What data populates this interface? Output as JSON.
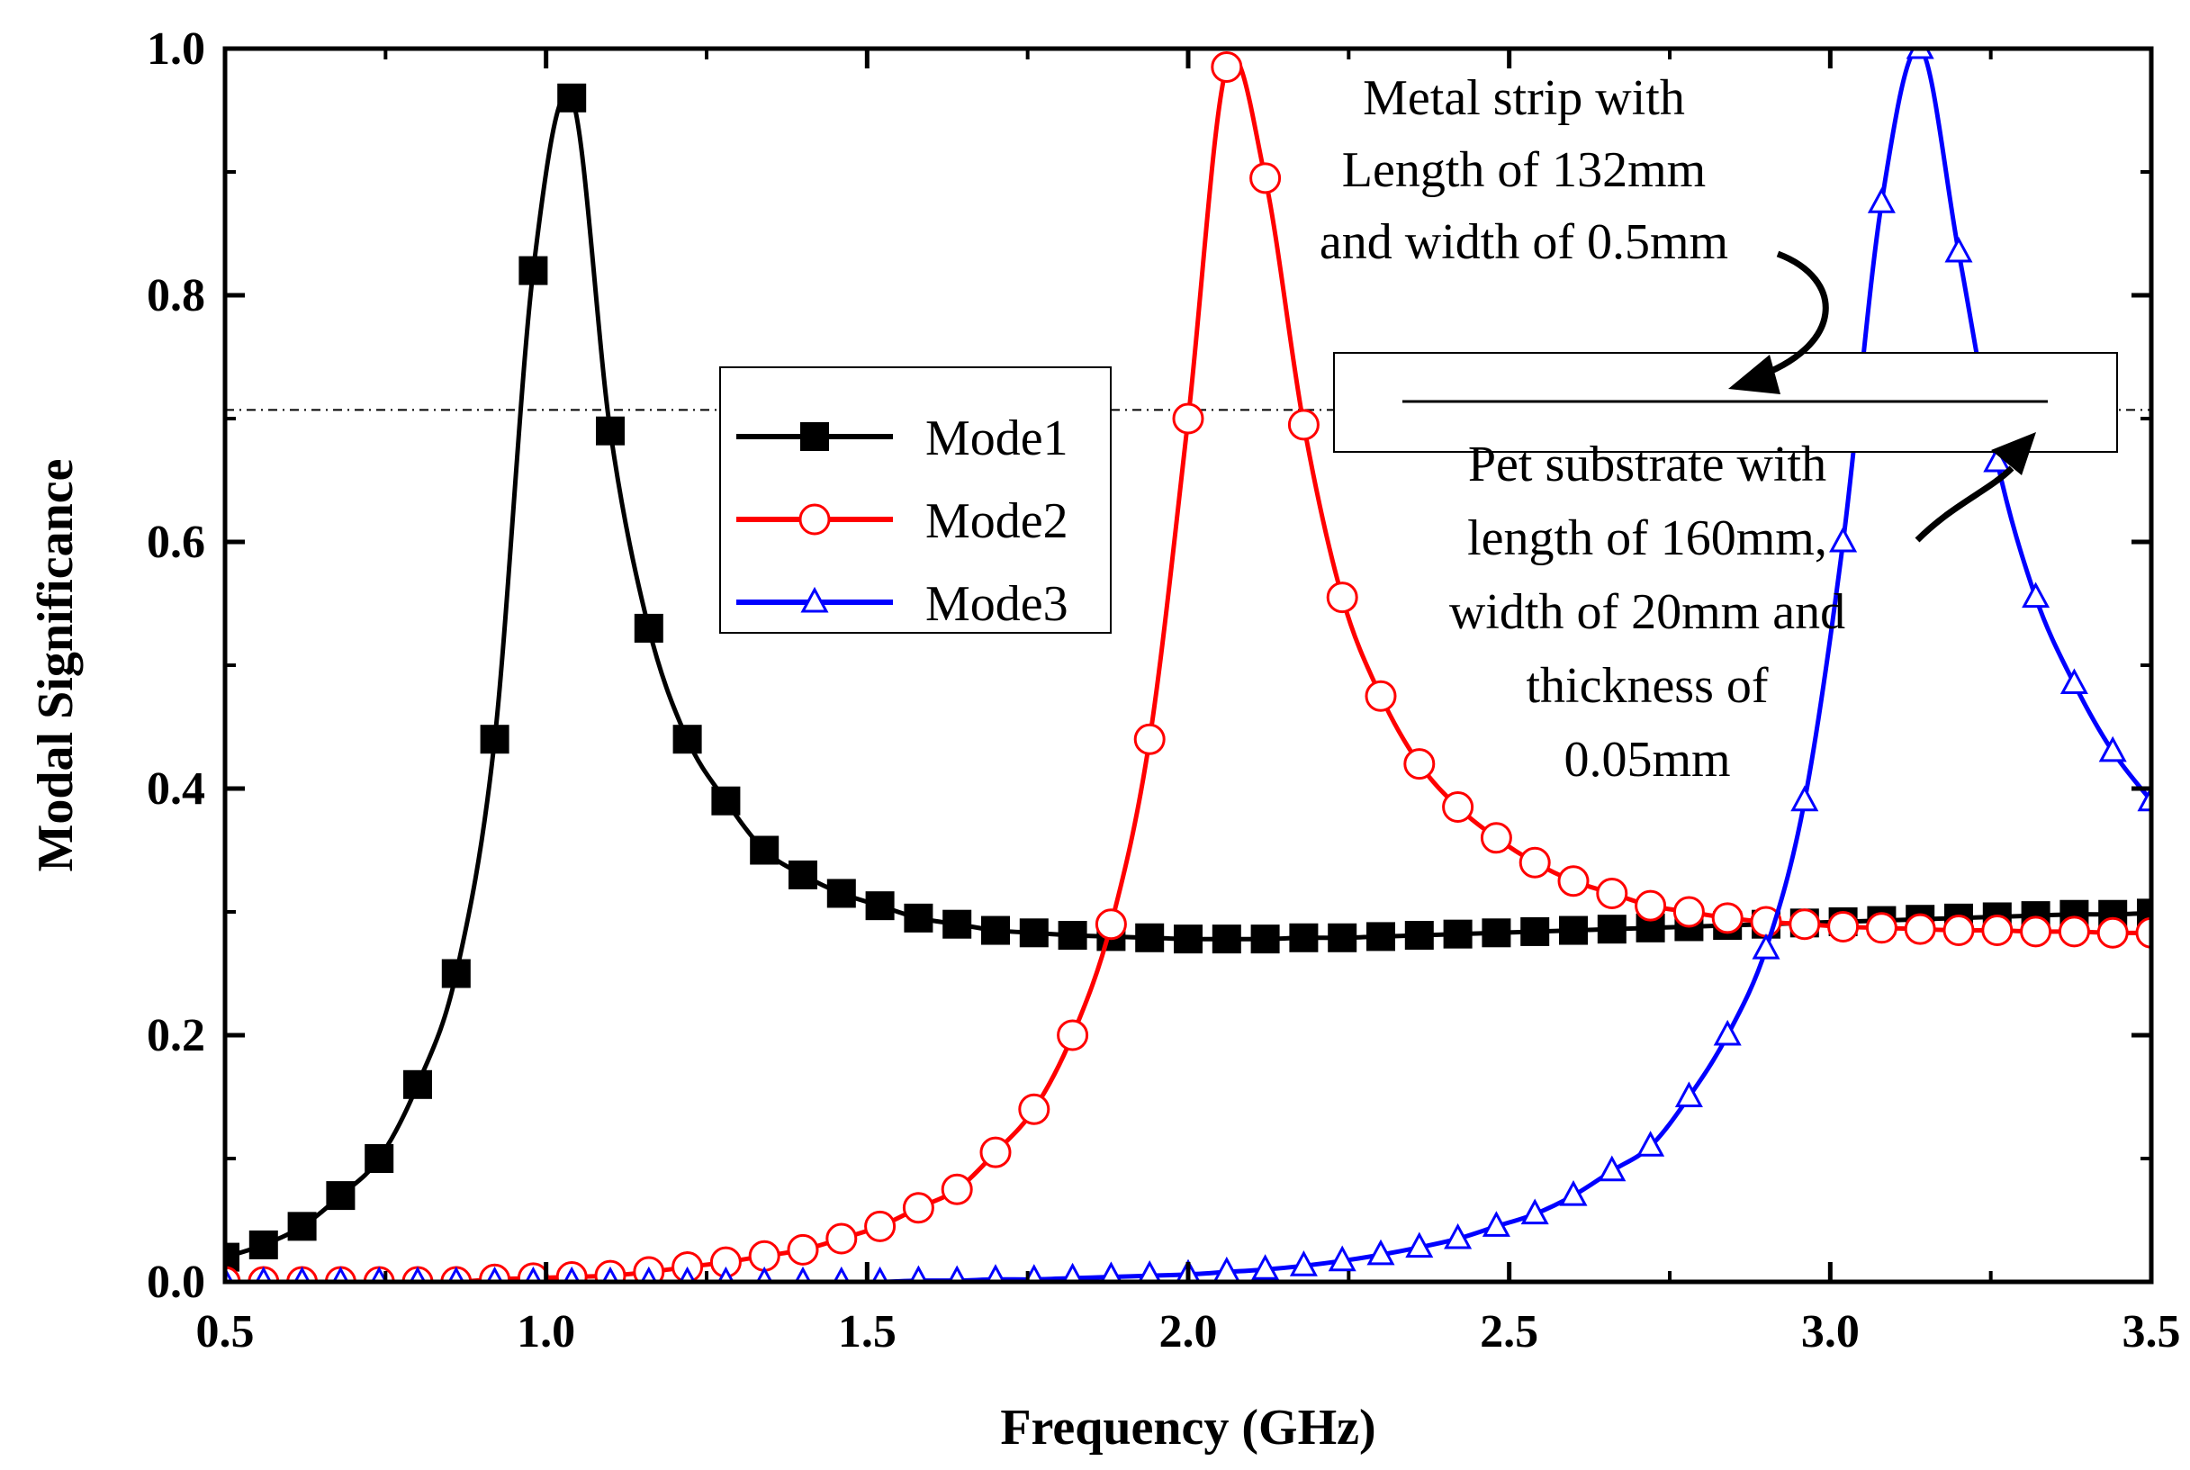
{
  "chart_data": {
    "type": "line",
    "title": "",
    "xlabel": "Frequency (GHz)",
    "ylabel": "Modal Significance",
    "xlim": [
      0.5,
      3.5
    ],
    "ylim": [
      0.0,
      1.0
    ],
    "x_ticks": [
      "0.5",
      "1.0",
      "1.5",
      "2.0",
      "2.5",
      "3.0",
      "3.5"
    ],
    "y_ticks": [
      "0.0",
      "0.2",
      "0.4",
      "0.6",
      "0.8",
      "1.0"
    ],
    "grid": false,
    "legend_position": "center-left",
    "reference_line": {
      "y": 0.707,
      "style": "dash-dot",
      "color": "#000000"
    },
    "series": [
      {
        "name": "Mode1",
        "color": "#000000",
        "marker": "filled-square",
        "x": [
          0.5,
          0.56,
          0.62,
          0.68,
          0.74,
          0.8,
          0.86,
          0.92,
          0.98,
          1.04,
          1.1,
          1.16,
          1.22,
          1.28,
          1.34,
          1.4,
          1.46,
          1.52,
          1.58,
          1.64,
          1.7,
          1.76,
          1.82,
          1.88,
          1.94,
          2.0,
          2.06,
          2.12,
          2.18,
          2.24,
          2.3,
          2.36,
          2.42,
          2.48,
          2.54,
          2.6,
          2.66,
          2.72,
          2.78,
          2.84,
          2.9,
          2.96,
          3.02,
          3.08,
          3.14,
          3.2,
          3.26,
          3.32,
          3.38,
          3.44,
          3.5
        ],
        "y": [
          0.02,
          0.03,
          0.045,
          0.07,
          0.1,
          0.16,
          0.25,
          0.44,
          0.82,
          0.96,
          0.69,
          0.53,
          0.44,
          0.39,
          0.35,
          0.33,
          0.315,
          0.305,
          0.295,
          0.29,
          0.285,
          0.283,
          0.281,
          0.28,
          0.279,
          0.278,
          0.278,
          0.278,
          0.279,
          0.279,
          0.28,
          0.281,
          0.282,
          0.283,
          0.284,
          0.285,
          0.286,
          0.287,
          0.288,
          0.289,
          0.29,
          0.291,
          0.292,
          0.293,
          0.294,
          0.295,
          0.296,
          0.297,
          0.298,
          0.298,
          0.299
        ]
      },
      {
        "name": "Mode2",
        "color": "#ff0000",
        "marker": "open-circle",
        "x": [
          0.5,
          0.56,
          0.62,
          0.68,
          0.74,
          0.8,
          0.86,
          0.92,
          0.98,
          1.04,
          1.1,
          1.16,
          1.22,
          1.28,
          1.34,
          1.4,
          1.46,
          1.52,
          1.58,
          1.64,
          1.7,
          1.76,
          1.82,
          1.88,
          1.94,
          2.0,
          2.06,
          2.12,
          2.18,
          2.24,
          2.3,
          2.36,
          2.42,
          2.48,
          2.54,
          2.6,
          2.66,
          2.72,
          2.78,
          2.84,
          2.9,
          2.96,
          3.02,
          3.08,
          3.14,
          3.2,
          3.26,
          3.32,
          3.38,
          3.44,
          3.5
        ],
        "y": [
          0.0,
          0.0,
          0.0,
          0.0,
          0.0,
          0.0,
          0.0,
          0.002,
          0.003,
          0.004,
          0.005,
          0.008,
          0.012,
          0.016,
          0.021,
          0.026,
          0.035,
          0.045,
          0.06,
          0.075,
          0.105,
          0.14,
          0.2,
          0.29,
          0.44,
          0.7,
          0.985,
          0.895,
          0.695,
          0.555,
          0.475,
          0.42,
          0.385,
          0.36,
          0.34,
          0.325,
          0.315,
          0.305,
          0.3,
          0.295,
          0.292,
          0.29,
          0.288,
          0.287,
          0.286,
          0.285,
          0.285,
          0.284,
          0.284,
          0.283,
          0.283
        ]
      },
      {
        "name": "Mode3",
        "color": "#0000ff",
        "marker": "open-triangle",
        "x": [
          0.5,
          0.56,
          0.62,
          0.68,
          0.74,
          0.8,
          0.86,
          0.92,
          0.98,
          1.04,
          1.1,
          1.16,
          1.22,
          1.28,
          1.34,
          1.4,
          1.46,
          1.52,
          1.58,
          1.64,
          1.7,
          1.76,
          1.82,
          1.88,
          1.94,
          2.0,
          2.06,
          2.12,
          2.18,
          2.24,
          2.3,
          2.36,
          2.42,
          2.48,
          2.54,
          2.6,
          2.66,
          2.72,
          2.78,
          2.84,
          2.9,
          2.96,
          3.02,
          3.08,
          3.14,
          3.2,
          3.26,
          3.32,
          3.38,
          3.44,
          3.5
        ],
        "y": [
          0.0,
          0.0,
          0.0,
          0.0,
          0.0,
          0.0,
          0.0,
          0.0,
          0.0,
          0.0,
          0.0,
          0.0,
          0.0,
          0.0,
          0.0,
          0.0,
          0.0,
          0.0,
          0.001,
          0.001,
          0.002,
          0.002,
          0.003,
          0.004,
          0.005,
          0.006,
          0.008,
          0.01,
          0.013,
          0.017,
          0.022,
          0.028,
          0.035,
          0.045,
          0.055,
          0.07,
          0.09,
          0.11,
          0.15,
          0.2,
          0.27,
          0.39,
          0.6,
          0.875,
          1.0,
          0.835,
          0.665,
          0.555,
          0.485,
          0.43,
          0.39
        ]
      }
    ],
    "annotations": {
      "metal_strip": [
        "Metal strip with",
        "Length of 132mm",
        "and width of 0.5mm"
      ],
      "substrate": [
        "Pet substrate with",
        "length of 160mm,",
        "width of 20mm and",
        "thickness of",
        "0.05mm"
      ]
    }
  }
}
